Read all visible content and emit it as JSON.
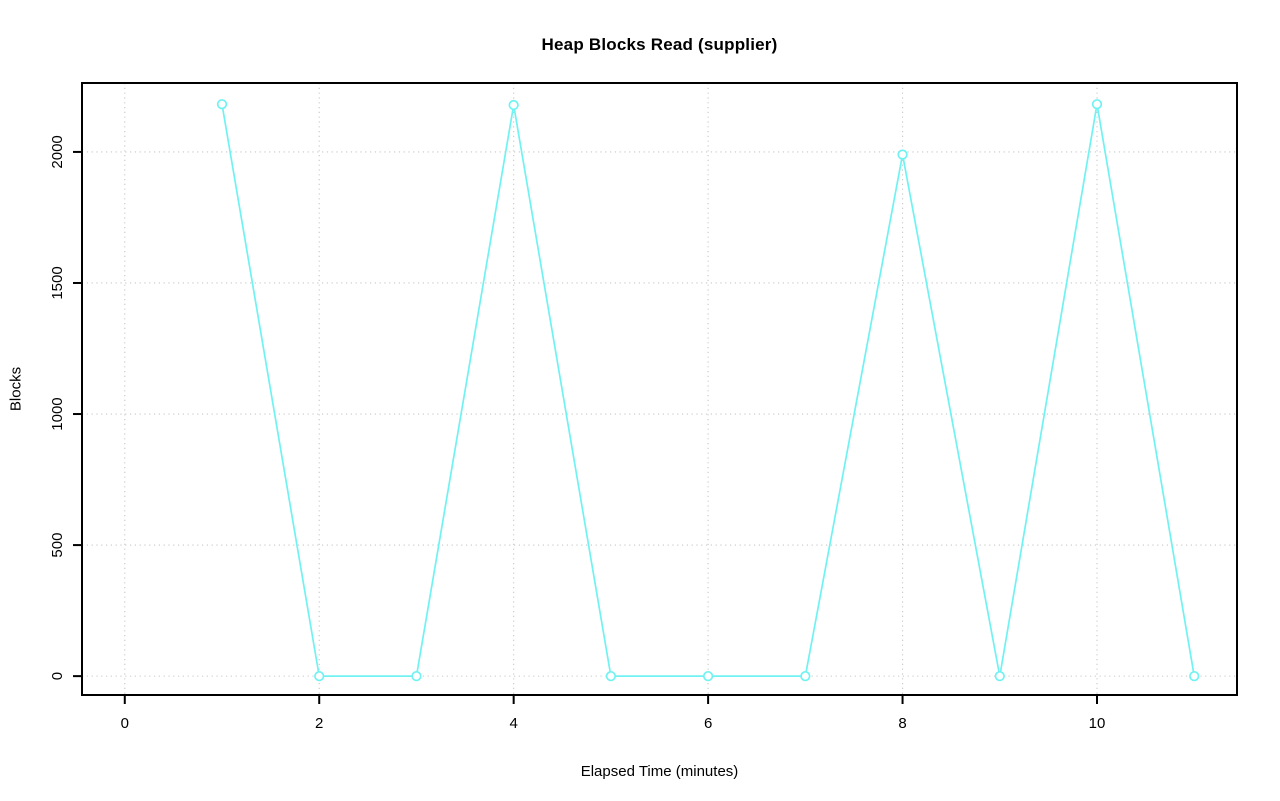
{
  "chart_data": {
    "type": "line",
    "title": "Heap Blocks Read (supplier)",
    "xlabel": "Elapsed Time (minutes)",
    "ylabel": "Blocks",
    "x": [
      1,
      2,
      3,
      4,
      5,
      6,
      7,
      8,
      9,
      10,
      11
    ],
    "values": [
      2182,
      0,
      0,
      2179,
      0,
      0,
      0,
      1990,
      0,
      2182,
      0
    ],
    "series_name": "supplier heap blocks read",
    "x_ticks": [
      0,
      2,
      4,
      6,
      8,
      10
    ],
    "y_ticks": [
      0,
      500,
      1000,
      1500,
      2000
    ],
    "xlim": [
      -0.44,
      11.44
    ],
    "ylim": [
      -72,
      2263
    ],
    "grid": "dotted",
    "legend": "none",
    "marker": "open-circle",
    "colors": {
      "line": "#70f2f2",
      "grid": "#c8c8c8",
      "axis": "#000000",
      "text": "#000000",
      "background": "#ffffff"
    }
  }
}
